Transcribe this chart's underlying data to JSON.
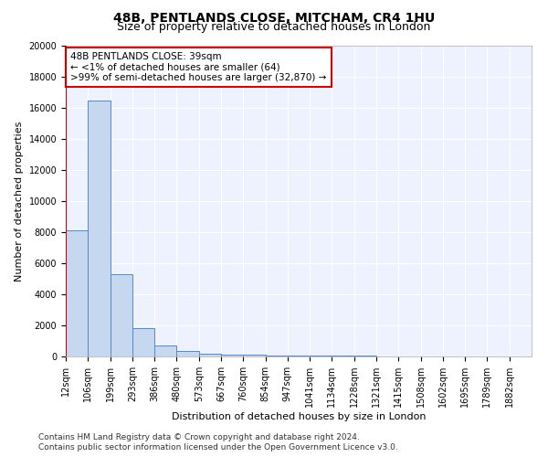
{
  "title": "48B, PENTLANDS CLOSE, MITCHAM, CR4 1HU",
  "subtitle": "Size of property relative to detached houses in London",
  "xlabel": "Distribution of detached houses by size in London",
  "ylabel": "Number of detached properties",
  "annotation_line1": "48B PENTLANDS CLOSE: 39sqm",
  "annotation_line2": "← <1% of detached houses are smaller (64)",
  "annotation_line3": ">99% of semi-detached houses are larger (32,870) →",
  "footer_line1": "Contains HM Land Registry data © Crown copyright and database right 2024.",
  "footer_line2": "Contains public sector information licensed under the Open Government Licence v3.0.",
  "bar_color": "#c5d8f0",
  "bar_edge_color": "#5588cc",
  "categories": [
    "12sqm",
    "106sqm",
    "199sqm",
    "293sqm",
    "386sqm",
    "480sqm",
    "573sqm",
    "667sqm",
    "760sqm",
    "854sqm",
    "947sqm",
    "1041sqm",
    "1134sqm",
    "1228sqm",
    "1321sqm",
    "1415sqm",
    "1508sqm",
    "1602sqm",
    "1695sqm",
    "1789sqm",
    "1882sqm"
  ],
  "values": [
    8100,
    16500,
    5300,
    1800,
    700,
    350,
    200,
    130,
    100,
    80,
    60,
    50,
    40,
    30,
    25,
    20,
    15,
    10,
    8,
    5,
    3
  ],
  "ylim": [
    0,
    20000
  ],
  "yticks": [
    0,
    2000,
    4000,
    6000,
    8000,
    10000,
    12000,
    14000,
    16000,
    18000,
    20000
  ],
  "background_color": "#eef2ff",
  "grid_color": "#ffffff",
  "annotation_box_color": "#ffffff",
  "annotation_box_edge": "#cc0000",
  "red_line_color": "#cc0000",
  "title_fontsize": 10,
  "subtitle_fontsize": 9,
  "axis_label_fontsize": 8,
  "tick_fontsize": 7,
  "annotation_fontsize": 7.5,
  "footer_fontsize": 6.5
}
